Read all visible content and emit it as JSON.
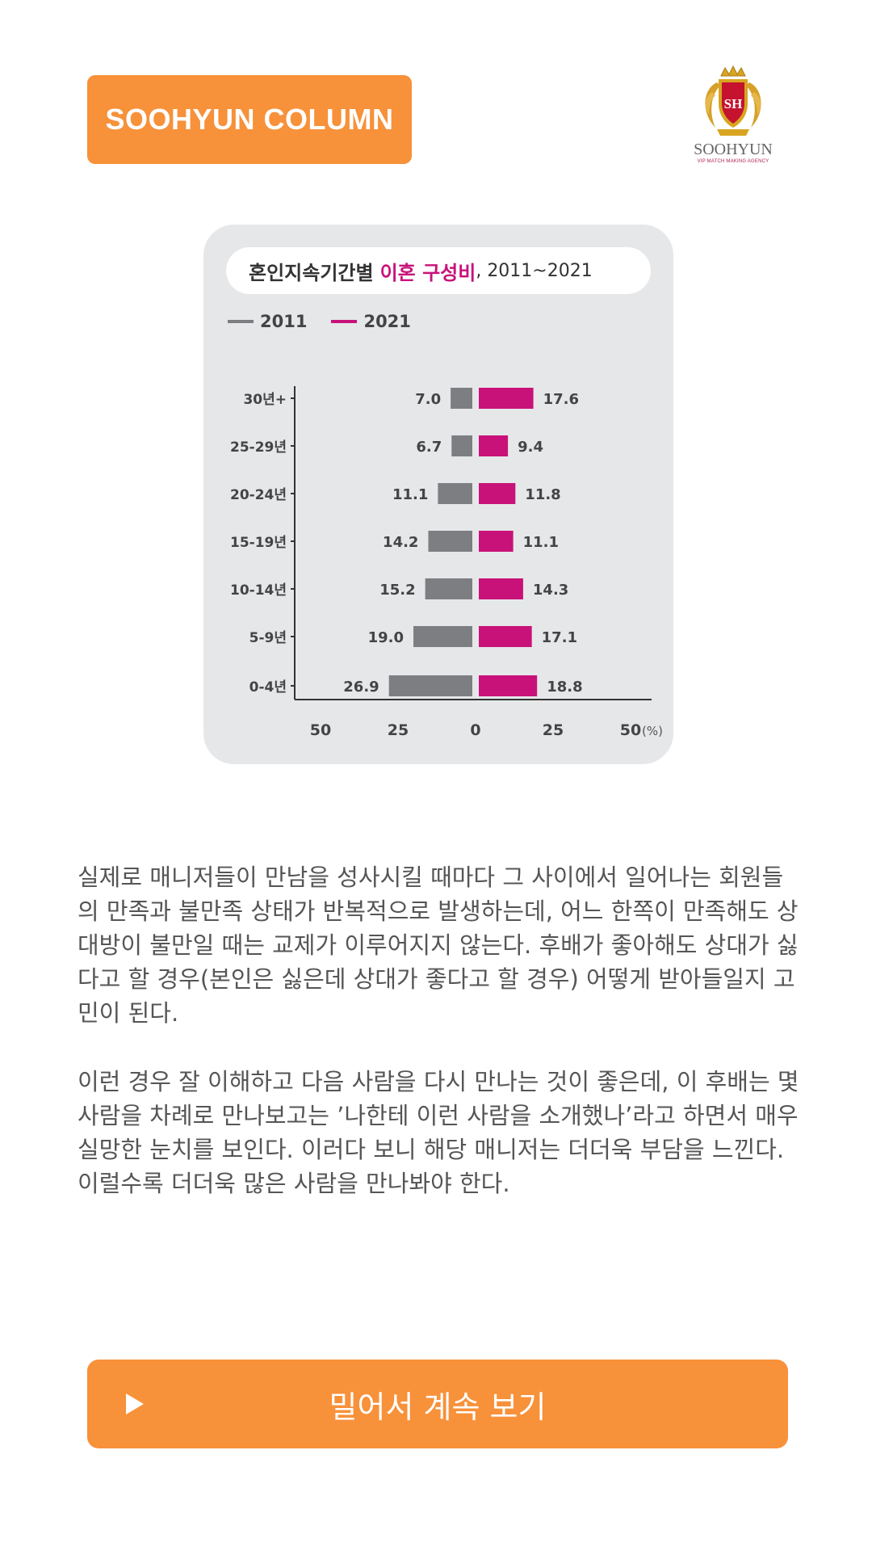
{
  "header": {
    "badge_label": "SOOHYUN COLUMN",
    "logo": {
      "monogram": "SH",
      "wordmark": "SOOHYUN",
      "tagline": "VIP MATCH MAKING AGENCY"
    }
  },
  "colors": {
    "accent": "#f7913a",
    "series_2011": "#7d7e82",
    "series_2021": "#c8127a"
  },
  "icons": {
    "play": "play-icon"
  },
  "chart_data": {
    "type": "bar",
    "title_main": "혼인지속기간별",
    "title_highlight": "이혼 구성비",
    "title_years": ", 2011~2021",
    "categories": [
      "30년+",
      "25-29년",
      "20-24년",
      "15-19년",
      "10-14년",
      "5-9년",
      "0-4년"
    ],
    "series": [
      {
        "name": "2011",
        "values": [
          7.0,
          6.7,
          11.1,
          14.2,
          15.2,
          19.0,
          26.9
        ],
        "color": "#7d7e82"
      },
      {
        "name": "2021",
        "values": [
          17.6,
          9.4,
          11.8,
          11.1,
          14.3,
          17.1,
          18.8
        ],
        "color": "#c8127a"
      }
    ],
    "x_ticks": [
      "50",
      "25",
      "0",
      "25",
      "50"
    ],
    "x_unit": "(%)",
    "xlim": [
      -50,
      50
    ],
    "orientation": "horizontal-butterfly",
    "legend_position": "top-left"
  },
  "article": {
    "paragraph1": "실제로 매니저들이 만남을 성사시킬 때마다 그 사이에서 일어나는 회원들의 만족과 불만족 상태가 반복적으로 발생하는데, 어느 한쪽이 만족해도 상대방이 불만일 때는 교제가 이루어지지 않는다. 후배가 좋아해도 상대가 싫다고 할 경우(본인은 싫은데 상대가 좋다고 할 경우) 어떻게 받아들일지 고민이 된다.",
    "paragraph2": "이런 경우 잘 이해하고 다음 사람을 다시 만나는 것이 좋은데, 이 후배는 몇 사람을 차례로 만나보고는 ’나한테 이런 사람을 소개했나’라고 하면서 매우 실망한 눈치를 보인다. 이러다 보니 해당 매니저는 더더욱 부담을 느낀다. 이럴수록 더더욱 많은 사람을 만나봐야 한다."
  },
  "cta": {
    "label": "밀어서 계속 보기"
  }
}
